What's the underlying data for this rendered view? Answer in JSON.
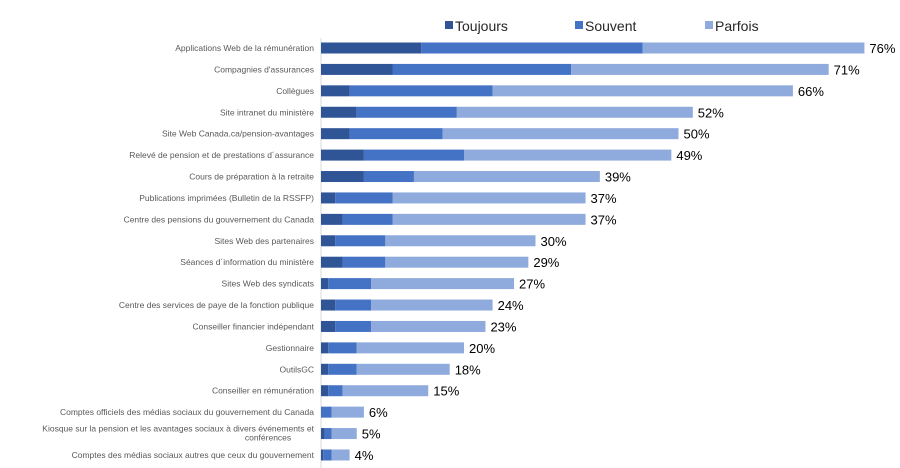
{
  "chart_data": {
    "type": "bar",
    "orientation": "horizontal",
    "stacked": true,
    "legend": {
      "position": "top"
    },
    "xlim": [
      0,
      80
    ],
    "grid": false,
    "colors": {
      "Toujours": "#2f5597",
      "Souvent": "#4472c4",
      "Parfois": "#8faadc"
    },
    "categories": [
      "Applications Web de la rémunération",
      "Compagnies d'assurances",
      "Collègues",
      "Site intranet du ministère",
      "Site Web Canada.ca/pension-avantages",
      "Relevé de pension et de prestations d´assurance",
      "Cours de préparation à la retraite",
      "Publications imprimées (Bulletin de la RSSFP)",
      "Centre des pensions du gouvernement du Canada",
      "Sites Web des partenaires",
      "Séances d´information du ministère",
      "Sites Web des syndicats",
      "Centre des services de paye de la fonction publique",
      "Conseiller financier indépendant",
      "Gestionnaire",
      "OutilsGC",
      "Conseiller en rémunération",
      "Comptes officiels des médias sociaux du gouvernement du Canada",
      "Kiosque sur la pension et les avantages sociaux à divers événements et conférences",
      "Comptes des médias sociaux autres que ceux du gouvernement"
    ],
    "series": [
      {
        "name": "Toujours",
        "values": [
          14,
          10,
          4,
          5,
          4,
          6,
          6,
          2,
          3,
          2,
          3,
          1,
          2,
          2,
          1,
          1,
          1,
          0,
          0.5,
          0.3
        ]
      },
      {
        "name": "Souvent",
        "values": [
          31,
          25,
          20,
          14,
          13,
          14,
          7,
          8,
          7,
          7,
          6,
          6,
          5,
          5,
          4,
          4,
          2,
          1.5,
          1,
          1.2
        ]
      },
      {
        "name": "Parfois",
        "values": [
          31,
          36,
          42,
          33,
          33,
          29,
          26,
          27,
          27,
          21,
          20,
          20,
          17,
          16,
          15,
          13,
          12,
          4.5,
          3.5,
          2.5
        ]
      }
    ],
    "totals": [
      "76%",
      "71%",
      "66%",
      "52%",
      "50%",
      "49%",
      "39%",
      "37%",
      "37%",
      "30%",
      "29%",
      "27%",
      "24%",
      "23%",
      "20%",
      "18%",
      "15%",
      "6%",
      "5%",
      "4%"
    ]
  }
}
